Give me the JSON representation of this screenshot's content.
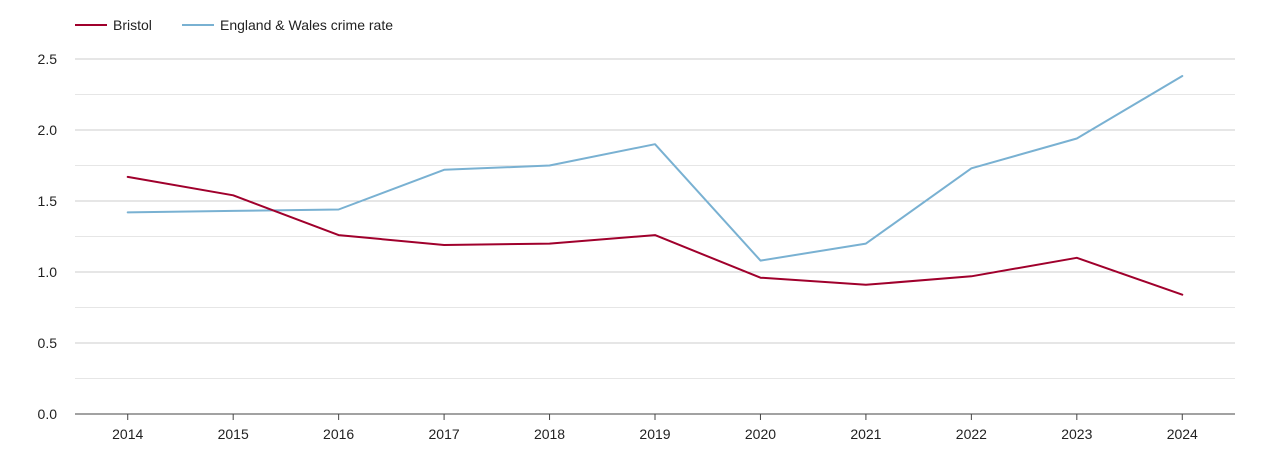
{
  "chart_data": {
    "type": "line",
    "title": "",
    "xlabel": "",
    "ylabel": "",
    "categories": [
      "2014",
      "2015",
      "2016",
      "2017",
      "2018",
      "2019",
      "2020",
      "2021",
      "2022",
      "2023",
      "2024"
    ],
    "ylim": [
      0,
      2.5
    ],
    "yticks": [
      "0.0",
      "0.5",
      "1.0",
      "1.5",
      "2.0",
      "2.5"
    ],
    "grid": true,
    "legend_position": "top-left",
    "series": [
      {
        "name": "Bristol",
        "color": "#a0002c",
        "values": [
          1.67,
          1.54,
          1.26,
          1.19,
          1.2,
          1.26,
          0.96,
          0.91,
          0.97,
          1.1,
          0.84
        ]
      },
      {
        "name": "England & Wales crime rate",
        "color": "#79b1d2",
        "values": [
          1.42,
          1.43,
          1.44,
          1.72,
          1.75,
          1.9,
          1.08,
          1.2,
          1.73,
          1.94,
          2.38
        ]
      }
    ]
  }
}
